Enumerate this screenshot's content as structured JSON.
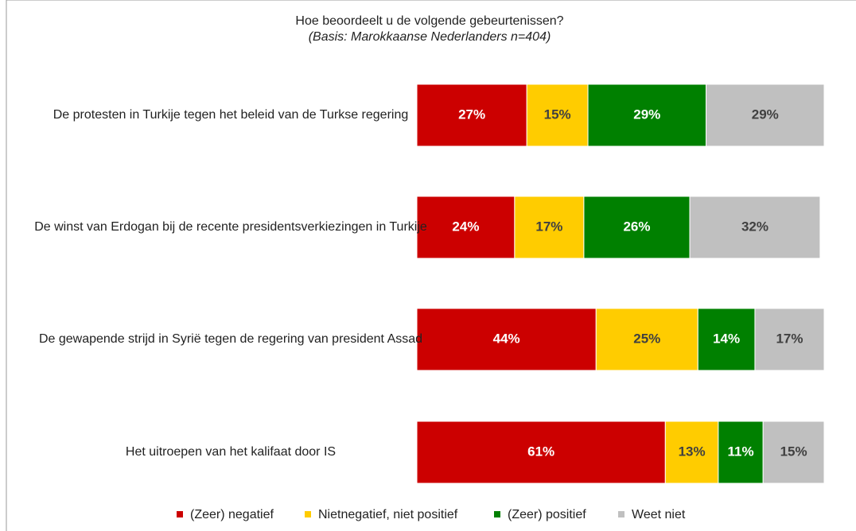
{
  "chart_data": {
    "type": "stacked-barh",
    "title": "Hoe beoordeelt u de volgende gebeurtenissen?",
    "subtitle": "(Basis: Marokkaanse Nederlanders n=404)",
    "categories": [
      "De protesten in Turkije tegen het beleid van de Turkse regering",
      "De winst van Erdogan bij de recente presidentsverkiezingen in Turkije",
      "De gewapende strijd in Syrië tegen de regering van president Assad",
      "Het uitroepen van het kalifaat door IS"
    ],
    "xlim": [
      0,
      100
    ],
    "series": [
      {
        "name": "(Zeer) negatief",
        "color": "#cc0000",
        "label_color": "#ffffff",
        "values": [
          27,
          24,
          44,
          61
        ],
        "value_labels": [
          "27%",
          "24%",
          "44%",
          "61%"
        ]
      },
      {
        "name": "Nietnegatief, niet positief",
        "color": "#ffcc00",
        "label_color": "#404040",
        "values": [
          15,
          17,
          25,
          13
        ],
        "value_labels": [
          "15%",
          "17%",
          "25%",
          "13%"
        ]
      },
      {
        "name": "(Zeer) positief",
        "color": "#008000",
        "label_color": "#ffffff",
        "values": [
          29,
          26,
          14,
          11
        ],
        "value_labels": [
          "29%",
          "26%",
          "14%",
          "11%"
        ]
      },
      {
        "name": "Weet niet",
        "color": "#c0c0c0",
        "label_color": "#404040",
        "values": [
          29,
          32,
          17,
          15
        ],
        "value_labels": [
          "29%",
          "32%",
          "17%",
          "15%"
        ]
      }
    ],
    "legend": "bottom"
  }
}
